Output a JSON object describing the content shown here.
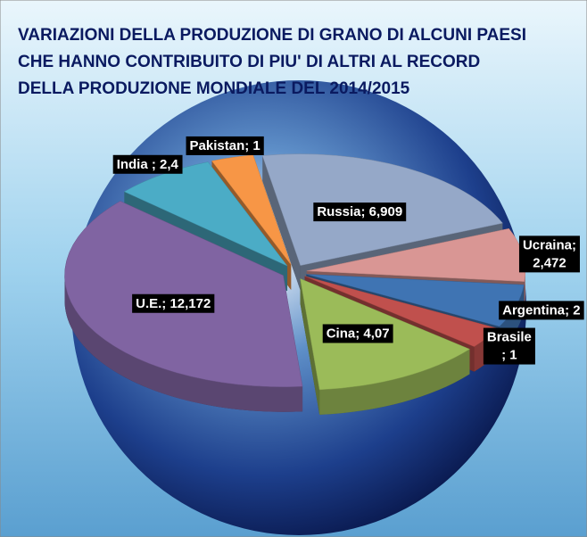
{
  "chart_data": {
    "type": "pie",
    "title": [
      "VARIAZIONI DELLA PRODUZIONE DI GRANO DI ALCUNI PAESI",
      "CHE HANNO CONTRIBUITO DI PIU' DI ALTRI AL RECORD",
      "DELLA PRODUZIONE MONDIALE DEL 2014/2015"
    ],
    "values": [
      6.909,
      2.472,
      2,
      1,
      4.07,
      12.172,
      2.4,
      1
    ],
    "value_labels": [
      "Russia; 6,909",
      "Ucraina;\n2,472",
      "Argentina; 2",
      "Brasile\n; 1",
      "Cina; 4,07",
      "U.E.; 12,172",
      "India ; 2,4",
      "Pakistan; 1"
    ],
    "colors": [
      "#95a8c8",
      "#d99694",
      "#3f74b3",
      "#c0504d",
      "#9bbb59",
      "#8064a2",
      "#4bacc6",
      "#f79646"
    ]
  }
}
